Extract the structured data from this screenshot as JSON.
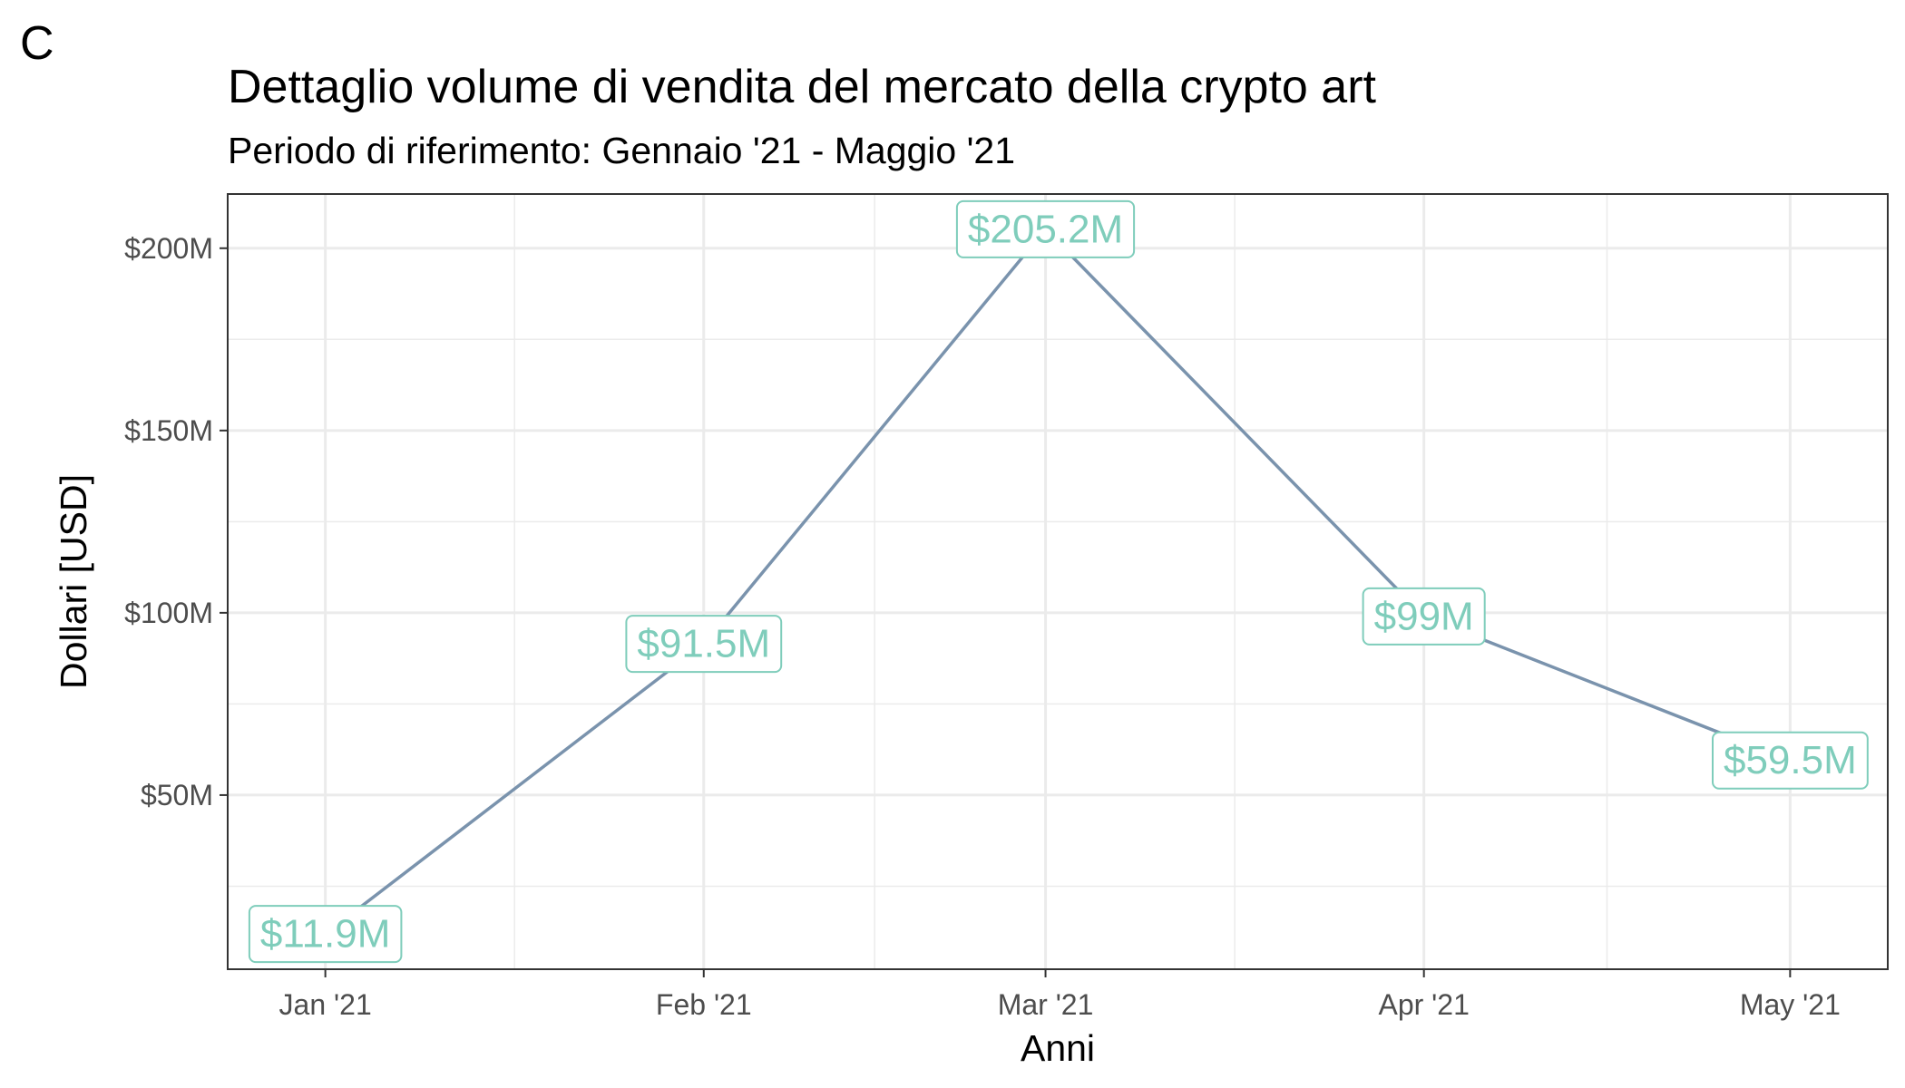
{
  "panel_letter": "C",
  "colors": {
    "line": "#7a93ad",
    "label": "#7fcdbb",
    "grid": "#ebebeb",
    "border": "#333333",
    "tick_text": "#4d4d4d"
  },
  "chart_data": {
    "type": "line",
    "title": "Dettaglio volume di vendita del mercato della crypto art",
    "subtitle": "Periodo di riferimento: Gennaio '21 - Maggio '21",
    "xlabel": "Anni",
    "ylabel": "Dollari [USD]",
    "x": [
      "2021-01-01",
      "2021-02-01",
      "2021-03-01",
      "2021-04-01",
      "2021-05-01"
    ],
    "x_tick_labels": [
      "Jan '21",
      "Feb '21",
      "Mar '21",
      "Apr '21",
      "May '21"
    ],
    "y": [
      11.9,
      91.5,
      205.2,
      99,
      59.5
    ],
    "y_unit": "million USD",
    "data_labels": [
      "$11.9M",
      "$91.5M",
      "$205.2M",
      "$99M",
      "$59.5M"
    ],
    "y_ticks": [
      50,
      100,
      150,
      200
    ],
    "y_tick_labels": [
      "$50M",
      "$100M",
      "$150M",
      "$200M"
    ],
    "ylim": [
      2.235,
      214.865
    ],
    "xlim": [
      "2020-12-24",
      "2021-05-09"
    ],
    "grid": true,
    "legend": "none"
  }
}
